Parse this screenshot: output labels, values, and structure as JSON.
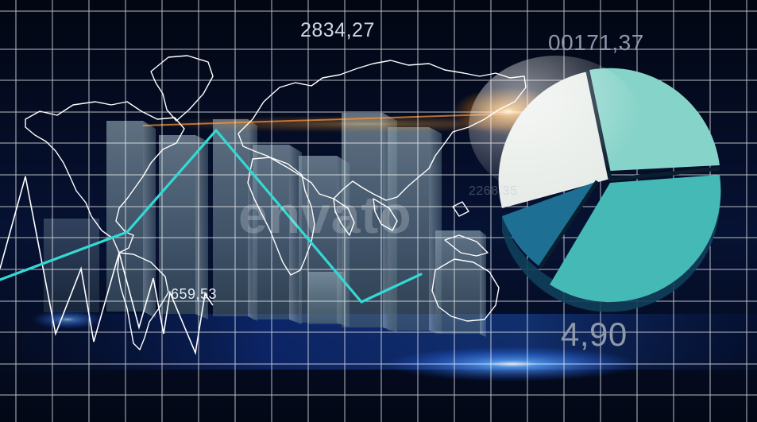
{
  "overlay_numbers": {
    "top_center": "2834,27",
    "top_right": "00171,37",
    "mid_left": "659,53",
    "bottom_right": "4,90",
    "faint_center": "2268,35"
  },
  "watermark": {
    "text": "envato"
  },
  "colors": {
    "background": "#040a1a",
    "grid_line": "#ffffff",
    "trend_line": "#33d9d3",
    "bar_fill": "#6f8a9a",
    "pie_light": "#e7ece8",
    "pie_teal_light": "#86d3c9",
    "pie_teal": "#45b9b5",
    "pie_dark": "#1d6f94",
    "flare_orange": "#ff8a1e",
    "flare_blue": "#2f7dff"
  }
}
